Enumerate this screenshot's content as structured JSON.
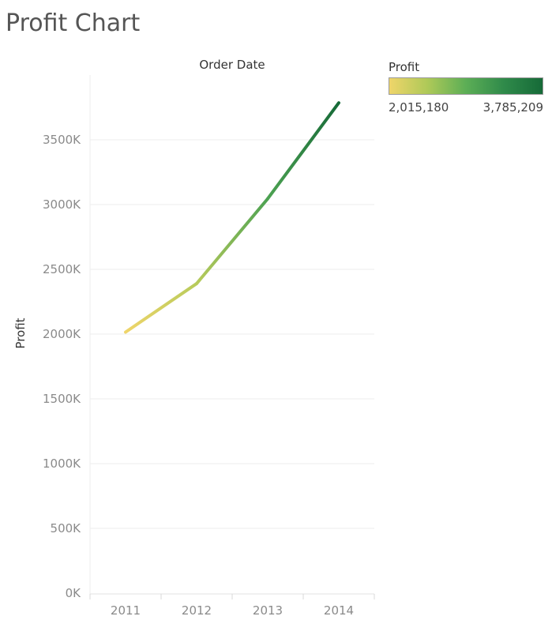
{
  "page": {
    "title": "Profit Chart"
  },
  "legend": {
    "title": "Profit",
    "min_label": "2,015,180",
    "max_label": "3,785,209",
    "gradient_colors": [
      "#efd56a",
      "#aec958",
      "#5cae56",
      "#2f8a4a",
      "#166a38"
    ]
  },
  "chart_data": {
    "type": "line",
    "title": "Profit Chart",
    "column_header": "Order Date",
    "xlabel": "",
    "ylabel": "Profit",
    "x": [
      "2011",
      "2012",
      "2013",
      "2014"
    ],
    "series": [
      {
        "name": "Profit",
        "values": [
          2015180,
          2390000,
          3045000,
          3785209
        ]
      }
    ],
    "y_ticks": [
      0,
      500000,
      1000000,
      1500000,
      2000000,
      2500000,
      3000000,
      3500000
    ],
    "y_tick_labels": [
      "0K",
      "500K",
      "1000K",
      "1500K",
      "2000K",
      "2500K",
      "3000K",
      "3500K"
    ],
    "ylim": [
      0,
      3870000
    ],
    "grid": true,
    "color_range": {
      "min": 2015180,
      "max": 3785209,
      "low_color": "#efd56a",
      "high_color": "#166a38"
    },
    "legend_position": "top-right"
  }
}
